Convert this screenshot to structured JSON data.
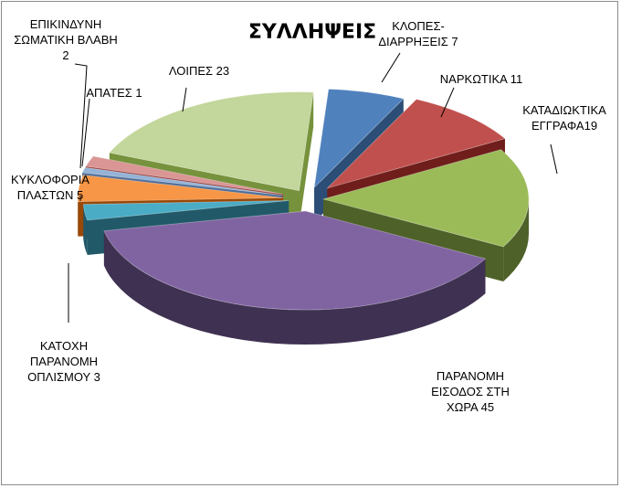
{
  "chart_data": {
    "type": "pie",
    "title": "ΣΥΛΛΗΨΕΙΣ",
    "slices": [
      {
        "name": "ΚΛΟΠΕΣ-ΔΙΑΡΡΗΞΕΙΣ",
        "value": 7,
        "label_lines": [
          "ΚΛΟΠΕΣ-",
          "ΔΙΑΡΡΗΞΕΙΣ 7"
        ],
        "color": "#4f81bd",
        "dark": "#2c4d75"
      },
      {
        "name": "ΝΑΡΚΩΤΙΚΑ",
        "value": 11,
        "label_lines": [
          "ΝΑΡΚΩΤΙΚΑ 11"
        ],
        "color": "#c0504d",
        "dark": "#6f1e1c"
      },
      {
        "name": "ΚΑΤΑΔΙΩΚΤΙΚΑ ΕΓΓΡΑΦΑ",
        "value": 19,
        "label_lines": [
          "ΚΑΤΑΔΙΩΚΤΙΚΑ",
          "ΕΓΓΡΑΦΑ19"
        ],
        "color": "#9bbb59",
        "dark": "#4e6128"
      },
      {
        "name": "ΠΑΡΑΝΟΜΗ ΕΙΣΟΔΟΣ ΣΤΗ ΧΩΡΑ",
        "value": 45,
        "label_lines": [
          "ΠΑΡΑΝΟΜΗ",
          "ΕΙΣΟΔΟΣ ΣΤΗ",
          "ΧΩΡΑ  45"
        ],
        "color": "#8064a2",
        "dark": "#3f3151"
      },
      {
        "name": "ΚΑΤΟΧΗ ΠΑΡΑΝΟΜΗ ΟΠΛΙΣΜΟΥ",
        "value": 3,
        "label_lines": [
          "ΚΑΤΟΧΗ",
          "ΠΑΡΑΝΟΜΗ",
          "ΟΠΛΙΣΜΟΥ 3"
        ],
        "color": "#4bacc6",
        "dark": "#215968"
      },
      {
        "name": "ΚΥΚΛΟΦΟΡΙΑ ΠΛΑΣΤΩΝ",
        "value": 5,
        "label_lines": [
          "ΚΥΚΛΟΦΟΡΙΑ",
          "ΠΛΑΣΤΩΝ  5"
        ],
        "color": "#f79646",
        "dark": "#984807"
      },
      {
        "name": "ΑΠΑΤΕΣ",
        "value": 1,
        "label_lines": [
          "ΑΠΑΤΕΣ 1"
        ],
        "color": "#95b3d7",
        "dark": "#4f6e98"
      },
      {
        "name": "ΕΠΙΚΙΝΔΥΝΗ ΣΩΜΑΤΙΚΗ ΒΛΑΒΗ",
        "value": 2,
        "label_lines": [
          "ΕΠΙΚΙΝΔΥΝΗ",
          "ΣΩΜΑΤΙΚΗ ΒΛΑΒΗ",
          "2"
        ],
        "color": "#d99694",
        "dark": "#943634"
      },
      {
        "name": "ΛΟΙΠΕΣ",
        "value": 23,
        "label_lines": [
          "ΛΟΙΠΕΣ 23"
        ],
        "color": "#c3d69b",
        "dark": "#76923c"
      }
    ]
  }
}
